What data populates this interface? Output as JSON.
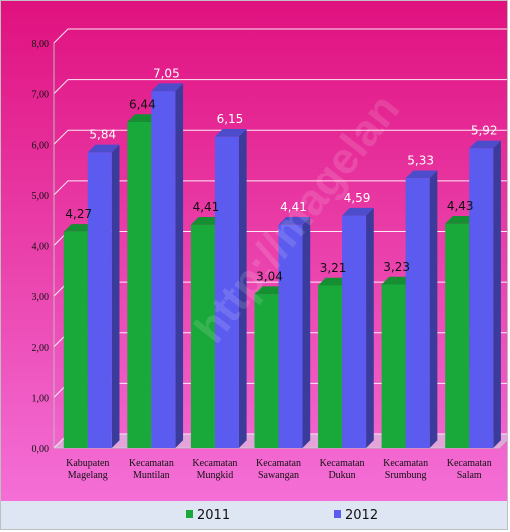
{
  "watermark": "http://magelan",
  "colors": {
    "bg_top": "#e0117f",
    "bg_bottom": "#f46fd7",
    "series_2011": "#19a83a",
    "series_2012": "#5b5bef",
    "gridline": "#ffffff",
    "label_2011": "#111111",
    "label_2012": "#ffffff"
  },
  "chart_data": {
    "type": "bar",
    "title": "",
    "xlabel": "",
    "ylabel": "",
    "ylim": [
      0,
      8
    ],
    "yticks": [
      "0,00",
      "1,00",
      "2,00",
      "3,00",
      "4,00",
      "5,00",
      "6,00",
      "7,00",
      "8,00"
    ],
    "categories": [
      [
        "Kabupaten",
        "Magelang"
      ],
      [
        "Kecamatan",
        "Muntilan"
      ],
      [
        "Kecamatan",
        "Mungkid"
      ],
      [
        "Kecamatan",
        "Sawangan"
      ],
      [
        "Kecamatan",
        "Dukun"
      ],
      [
        "Kecamatan",
        "Srumbung"
      ],
      [
        "Kecamatan",
        "Salam"
      ]
    ],
    "series": [
      {
        "name": "2011",
        "values": [
          4.27,
          6.44,
          4.41,
          3.04,
          3.21,
          3.23,
          4.43
        ],
        "labels": [
          "4,27",
          "6,44",
          "4,41",
          "3,04",
          "3,21",
          "3,23",
          "4,43"
        ]
      },
      {
        "name": "2012",
        "values": [
          5.84,
          7.05,
          6.15,
          4.41,
          4.59,
          5.33,
          5.92
        ],
        "labels": [
          "5,84",
          "7,05",
          "6,15",
          "4,41",
          "4,59",
          "5,33",
          "5,92"
        ]
      }
    ],
    "grid": true,
    "legend_position": "bottom"
  }
}
